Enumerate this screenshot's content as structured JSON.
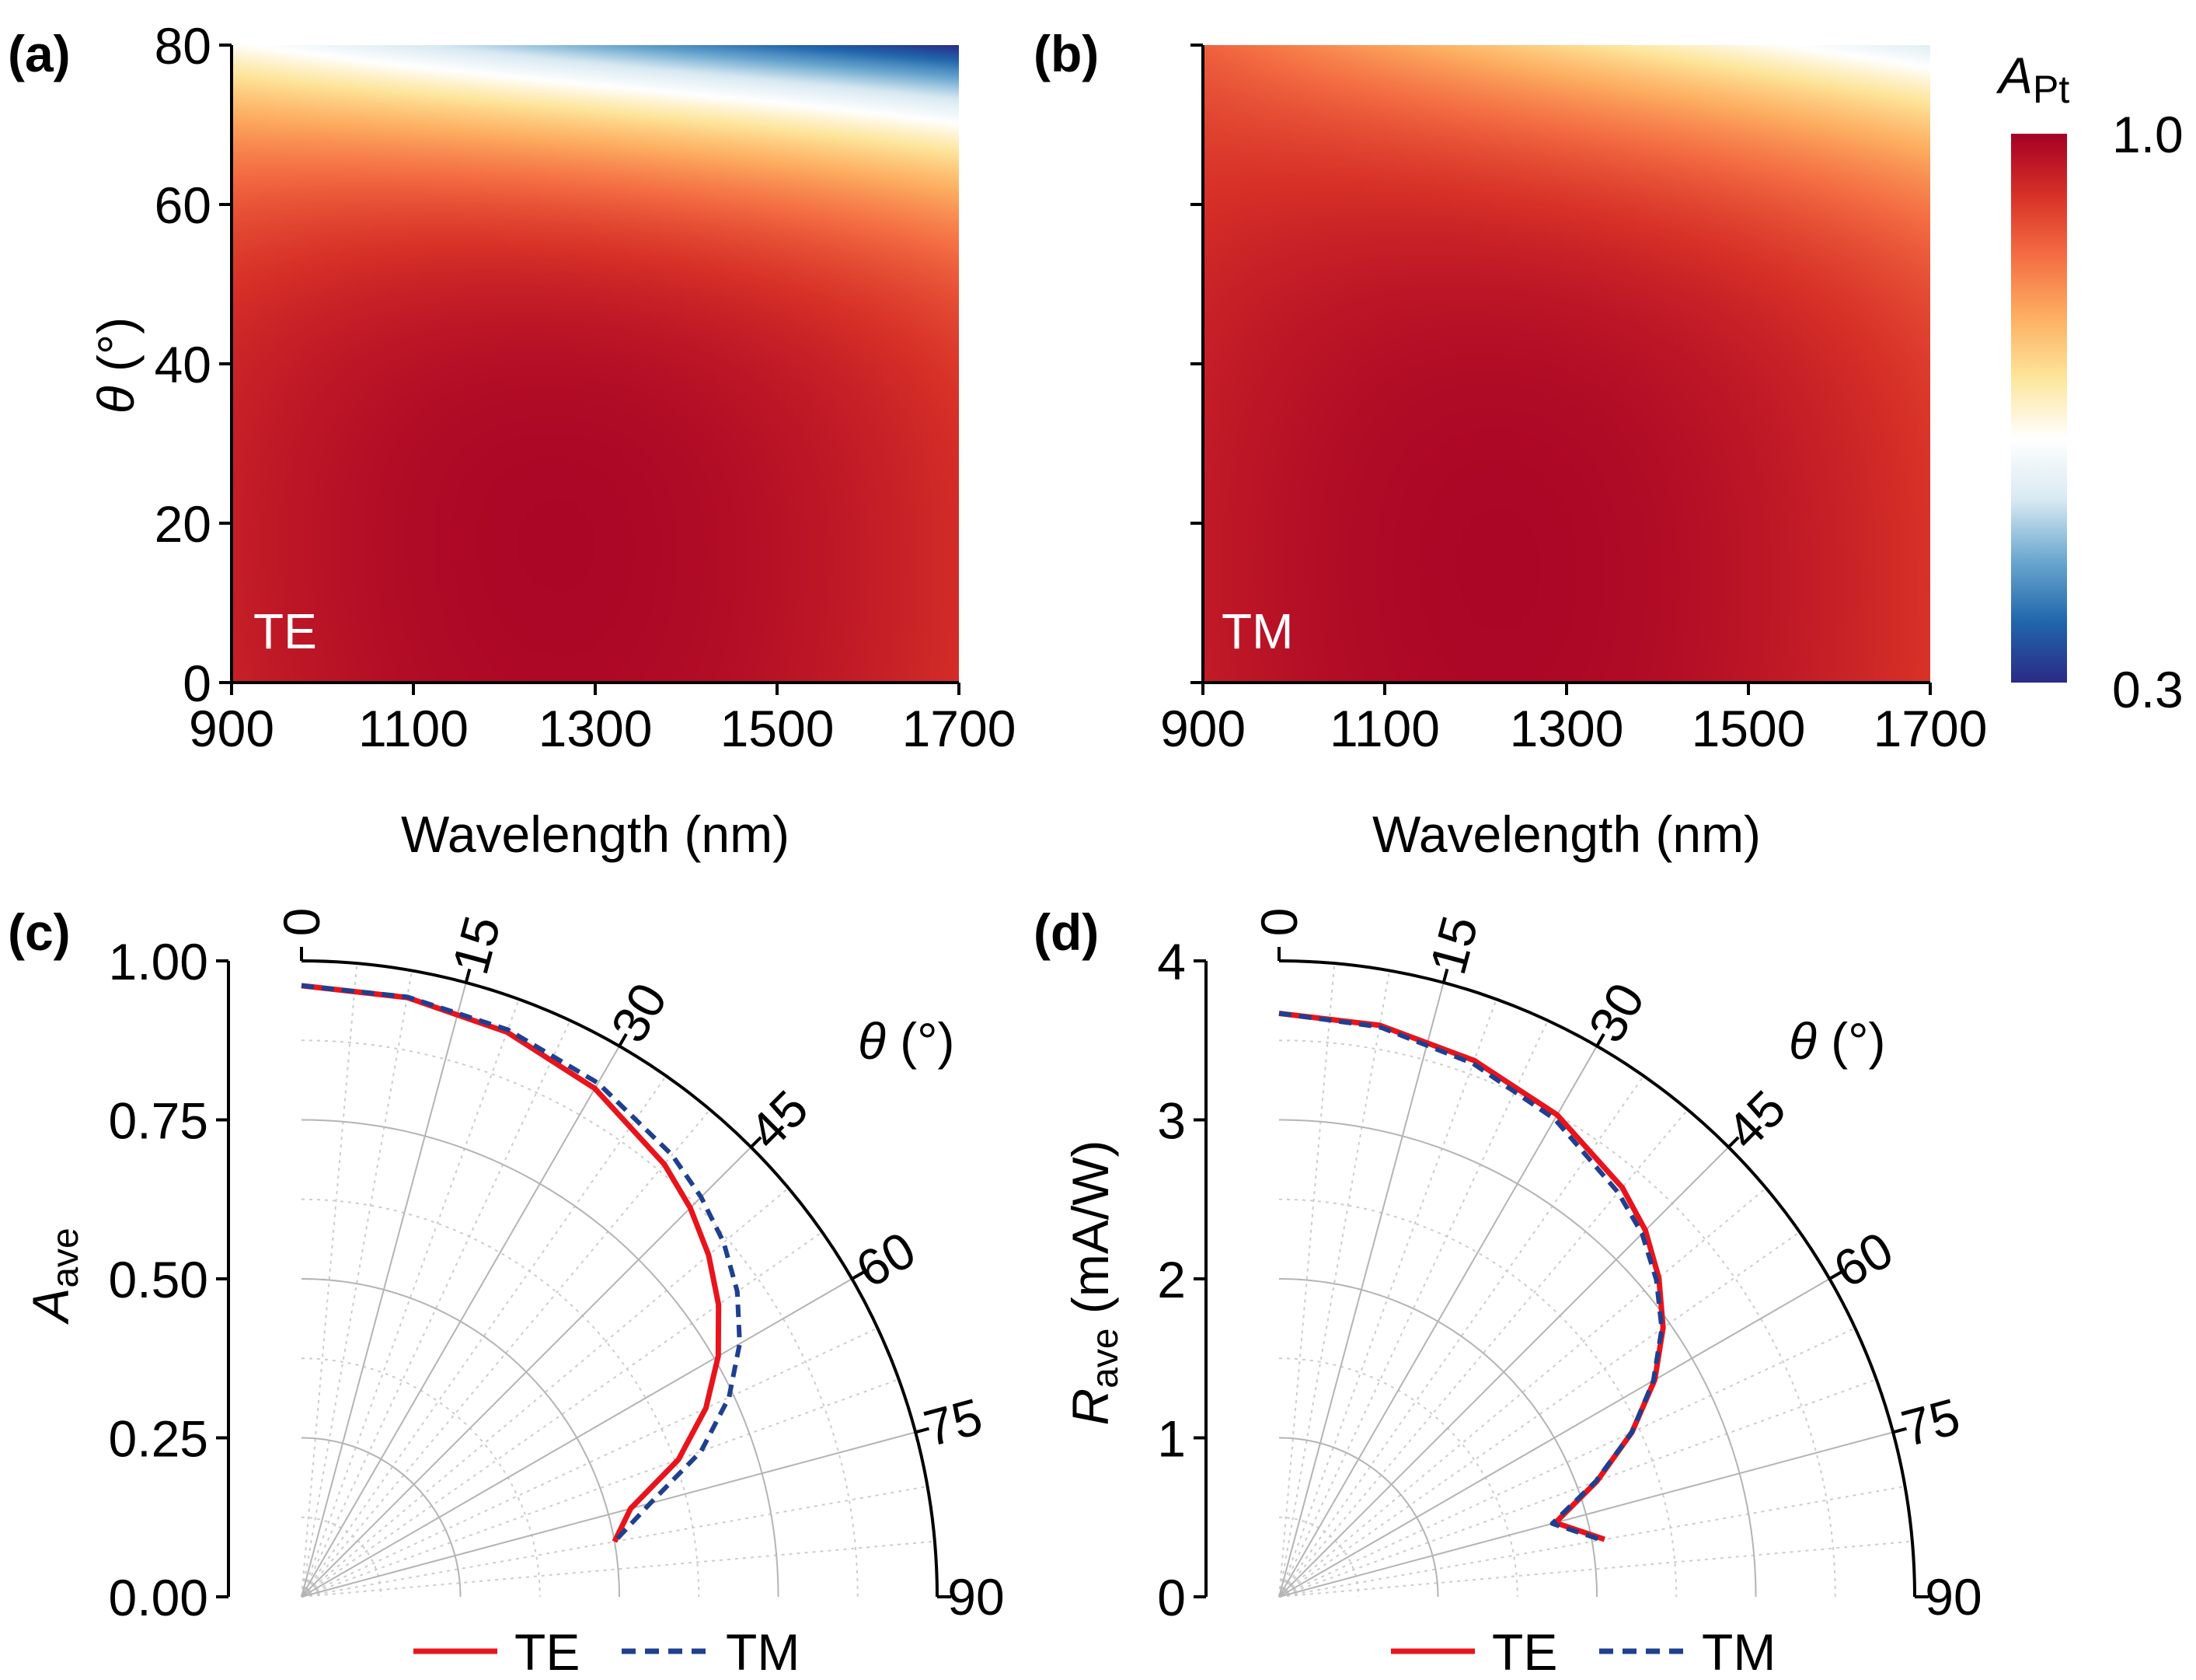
{
  "colors": {
    "te_line": "#e8141c",
    "tm_line": "#1f3f8f",
    "colormap_stops": [
      "#2a2a85",
      "#2166ac",
      "#6aa7cf",
      "#d8e9f2",
      "#ffffff",
      "#fde59a",
      "#fdae61",
      "#f46d43",
      "#d73027",
      "#a50026"
    ]
  },
  "colorbar": {
    "title_main": "A",
    "title_sub": "Pt",
    "max_label": "1.0",
    "min_label": "0.3"
  },
  "chart_data": [
    {
      "id": "a",
      "panel_label": "(a)",
      "type": "heatmap",
      "annotation": "TE",
      "xlabel": "Wavelength (nm)",
      "ylabel_symbol": "θ",
      "ylabel_unit": " (°)",
      "xlim": [
        900,
        1700
      ],
      "ylim": [
        0,
        80
      ],
      "xticks": [
        "900",
        "1100",
        "1300",
        "1500",
        "1700"
      ],
      "yticks": [
        "0",
        "20",
        "40",
        "60",
        "80"
      ],
      "colorbar_range": [
        0.3,
        1.0
      ],
      "peak": {
        "wavelength": 1250,
        "theta": 20,
        "value": 0.99
      },
      "edge_values": {
        "theta_80_at_900": 0.62,
        "theta_80_at_1700": 0.3,
        "theta_0_at_1700": 0.93
      }
    },
    {
      "id": "b",
      "panel_label": "(b)",
      "type": "heatmap",
      "annotation": "TM",
      "xlabel": "Wavelength (nm)",
      "xlim": [
        900,
        1700
      ],
      "ylim": [
        0,
        80
      ],
      "xticks": [
        "900",
        "1100",
        "1300",
        "1500",
        "1700"
      ],
      "colorbar_range": [
        0.3,
        1.0
      ],
      "peak": {
        "wavelength": 1220,
        "theta": 15,
        "value": 0.99
      },
      "edge_values": {
        "theta_80_at_900": 0.86,
        "theta_80_at_1700": 0.55,
        "theta_0_at_1700": 0.92
      }
    },
    {
      "id": "c",
      "panel_label": "(c)",
      "type": "line",
      "polar": true,
      "ylabel_main": "A",
      "ylabel_sub": "ave",
      "theta_label_symbol": "θ",
      "theta_label_unit": " (°)",
      "rlim": [
        0,
        1.0
      ],
      "rticks": [
        "0.00",
        "0.25",
        "0.50",
        "0.75",
        "1.00"
      ],
      "rtick_values": [
        0,
        0.25,
        0.5,
        0.75,
        1.0
      ],
      "theta_ticks": [
        "0",
        "15",
        "30",
        "45",
        "60",
        "75",
        "90"
      ],
      "theta_tick_values": [
        0,
        15,
        30,
        45,
        60,
        75,
        90
      ],
      "series": [
        {
          "name": "TE",
          "theta": [
            0,
            10,
            20,
            30,
            40,
            45,
            50,
            55,
            60,
            65,
            70,
            75,
            80
          ],
          "values": [
            0.961,
            0.957,
            0.945,
            0.923,
            0.888,
            0.865,
            0.836,
            0.801,
            0.757,
            0.702,
            0.631,
            0.536,
            0.5
          ]
        },
        {
          "name": "TM",
          "theta": [
            0,
            10,
            20,
            30,
            40,
            45,
            50,
            55,
            60,
            65,
            70,
            75,
            80
          ],
          "values": [
            0.961,
            0.958,
            0.949,
            0.933,
            0.907,
            0.889,
            0.867,
            0.837,
            0.796,
            0.742,
            0.669,
            0.568,
            0.5
          ]
        }
      ]
    },
    {
      "id": "d",
      "panel_label": "(d)",
      "type": "line",
      "polar": true,
      "ylabel_main": "R",
      "ylabel_sub": "ave",
      "ylabel_unit": " (mA/W)",
      "theta_label_symbol": "θ",
      "theta_label_unit": " (°)",
      "rlim": [
        0,
        4
      ],
      "rticks": [
        "0",
        "1",
        "2",
        "3",
        "4"
      ],
      "rtick_values": [
        0,
        1,
        2,
        3,
        4
      ],
      "theta_ticks": [
        "0",
        "15",
        "30",
        "45",
        "60",
        "75",
        "90"
      ],
      "theta_tick_values": [
        0,
        15,
        30,
        45,
        60,
        75,
        90
      ],
      "series": [
        {
          "name": "TE",
          "theta": [
            0,
            10,
            20,
            30,
            40,
            45,
            50,
            55,
            60,
            65,
            70,
            75,
            80
          ],
          "values": [
            3.67,
            3.65,
            3.59,
            3.5,
            3.36,
            3.26,
            3.12,
            2.95,
            2.73,
            2.45,
            2.13,
            1.8,
            2.08
          ]
        },
        {
          "name": "TM",
          "theta": [
            0,
            10,
            20,
            30,
            40,
            45,
            50,
            55,
            60,
            65,
            70,
            75,
            80
          ],
          "values": [
            3.67,
            3.64,
            3.57,
            3.47,
            3.32,
            3.23,
            3.1,
            2.94,
            2.72,
            2.45,
            2.12,
            1.78,
            2.06
          ]
        }
      ]
    }
  ]
}
